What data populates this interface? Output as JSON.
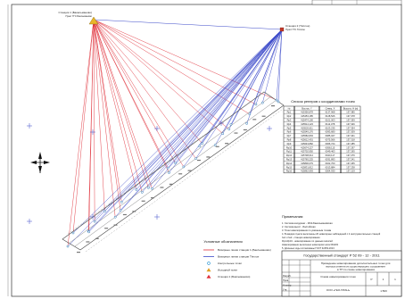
{
  "stations": [
    {
      "label": "Станция 1 (Бакальманово)",
      "sub": "Пункт ГГС Баклыманово",
      "color": "#d4a017"
    },
    {
      "label": "Станция 2 (Тёплое)",
      "sub": "Пункт ГГС Тёплое",
      "color": "#c23a2a"
    }
  ],
  "table": {
    "title": "Список реперов с координатами точек",
    "headers": [
      "№",
      "Восток, Y",
      "Север, X",
      "Высота, H (м)"
    ],
    "rows": [
      [
        "Rp1",
        "415350,878",
        "6137,968",
        "137,385"
      ],
      [
        "Rp2",
        "415453,185",
        "6128,526",
        "137,378"
      ],
      [
        "Rp3",
        "415474,100",
        "6101,003",
        "137,359"
      ],
      [
        "Rp4",
        "415514,123",
        "6112,378",
        "137,326"
      ],
      [
        "Rp5",
        "415520,611",
        "6103,235",
        "137,354"
      ],
      [
        "Rp6",
        "415549,176",
        "6093,680",
        "137,309"
      ],
      [
        "Rp7",
        "415582,803",
        "6085,027",
        "137,341"
      ],
      [
        "Rp8",
        "415612,401",
        "6075,566",
        "137,318"
      ],
      [
        "Rp9",
        "415643,882",
        "6066,724",
        "137,285"
      ],
      [
        "Rp10",
        "415674,227",
        "6058,115",
        "137,297"
      ],
      [
        "Rp11",
        "415702,950",
        "6049,463",
        "137,265"
      ],
      [
        "Rp12",
        "415738,614",
        "6040,117",
        "137,276"
      ],
      [
        "Rp13",
        "415765,225",
        "6031,893",
        "137,241"
      ],
      [
        "Rp14",
        "415800,079",
        "6022,700",
        "137,265"
      ],
      [
        "Rp15",
        "415831,812",
        "6013,884",
        "137,238"
      ],
      [
        "Rp16",
        "415862,993",
        "6004,930",
        "137,219"
      ]
    ]
  },
  "stamp_top": "Государственный стандарт Р 52 09 - 12 - 2011",
  "notes_title": "Примечания:",
  "notes": [
    "1. Система координат - МСК-Бакальмановская",
    "2. Система высот - Балтийская",
    "3. Точки нивелирования по указанным точкам",
    "4. В каждом пункте выполнены 20 нивелирных наблюдений с 2 инструментальных станций",
    "   №1 и №2 - станции нивелирования",
    "   Rp1-Rp16 - нивелирование по данным записей",
    "   Нивелирование выполнено нивелиром Leica DNA03",
    "5. Длинные ходы согласованы ГОСТ 32453-2013"
  ],
  "legend_title": "Условные обозначения",
  "legend": [
    {
      "label": "Визирные линии станции 1 (Баклыманово)",
      "color": "#e0303a",
      "kind": "line"
    },
    {
      "label": "Визирные линии станции Тёплое",
      "color": "#3a48c8",
      "kind": "line"
    },
    {
      "label": "Контрольные точки",
      "color": "#1f8fd0",
      "kind": "dot"
    },
    {
      "label": "Исходный пункт",
      "color": "#e0a020",
      "kind": "tri"
    },
    {
      "label": "Станция 1 (Баклыманово)",
      "color": "#e0303a",
      "kind": "tri"
    }
  ],
  "title_block": {
    "doc_title": "Проведение нивелирования дополнительных точек для выноса отметки из существующего сооружения в ТП по схеме нивелирования",
    "object": "Схема нивелирования точек",
    "stage": "Р",
    "sheet": "1",
    "sheets": "1",
    "org": "ООО «ГЕО-ПЛАН»",
    "scale": "1:500",
    "signatures": [
      "Разраб.",
      "Пров.",
      "Н.контр.",
      "Утв."
    ]
  }
}
